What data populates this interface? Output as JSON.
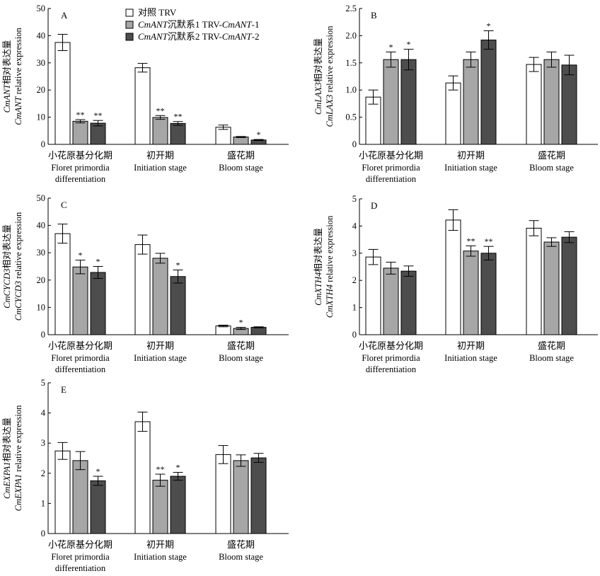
{
  "legend": {
    "items": [
      {
        "parts": [
          {
            "t": "对照 TRV",
            "i": false
          }
        ]
      },
      {
        "parts": [
          {
            "t": "CmANT",
            "i": true
          },
          {
            "t": "沉默系1 TRV-",
            "i": false
          },
          {
            "t": "CmANT",
            "i": true
          },
          {
            "t": "-1",
            "i": false
          }
        ]
      },
      {
        "parts": [
          {
            "t": "CmANT",
            "i": true
          },
          {
            "t": "沉默系2 TRV-",
            "i": false
          },
          {
            "t": "CmANT",
            "i": true
          },
          {
            "t": "-2",
            "i": false
          }
        ]
      }
    ],
    "colors": [
      "#ffffff",
      "#a6a6a6",
      "#4d4d4d"
    ]
  },
  "chart_data": [
    {
      "type": "bar",
      "panel": "A",
      "ylabel_cn": {
        "gene": "CmANT",
        "rest": "相对表达量"
      },
      "ylabel_en": {
        "gene": "CmANT",
        "rest": " relative expression"
      },
      "ylim": [
        0,
        50
      ],
      "yticks": [
        "0",
        "10",
        "20",
        "30",
        "40",
        "50"
      ],
      "categories": [
        {
          "cn": "小花原基分化期",
          "en": [
            "Floret primordia",
            "differentiation"
          ]
        },
        {
          "cn": "初开期",
          "en": [
            "Initiation stage"
          ]
        },
        {
          "cn": "盛花期",
          "en": [
            "Bloom stage"
          ]
        }
      ],
      "series": [
        {
          "values": [
            37.5,
            28.2,
            6.3
          ],
          "errors": [
            3.0,
            1.6,
            0.8
          ],
          "sig": [
            "",
            "",
            ""
          ]
        },
        {
          "values": [
            8.5,
            9.9,
            2.7
          ],
          "errors": [
            0.6,
            0.7,
            0.2
          ],
          "sig": [
            "**",
            "**",
            ""
          ]
        },
        {
          "values": [
            7.8,
            7.7,
            1.6
          ],
          "errors": [
            1.0,
            0.7,
            0.2
          ],
          "sig": [
            "**",
            "**",
            "*"
          ]
        }
      ]
    },
    {
      "type": "bar",
      "panel": "B",
      "ylabel_cn": {
        "gene": "CmLAX3",
        "rest": "相对表达量"
      },
      "ylabel_en": {
        "gene": "CmLAX3",
        "rest": " relative expression"
      },
      "ylim": [
        0,
        2.5
      ],
      "yticks": [
        "0",
        "0.5",
        "1.0",
        "1.5",
        "2.0",
        "2.5"
      ],
      "categories": [
        {
          "cn": "小花原基分化期",
          "en": [
            "Floret primordia",
            "differentiation"
          ]
        },
        {
          "cn": "初开期",
          "en": [
            "Initiation stage"
          ]
        },
        {
          "cn": "盛花期",
          "en": [
            "Bloom stage"
          ]
        }
      ],
      "series": [
        {
          "values": [
            0.87,
            1.13,
            1.47
          ],
          "errors": [
            0.13,
            0.13,
            0.13
          ],
          "sig": [
            "",
            "",
            ""
          ]
        },
        {
          "values": [
            1.56,
            1.56,
            1.56
          ],
          "errors": [
            0.14,
            0.14,
            0.14
          ],
          "sig": [
            "*",
            "",
            ""
          ]
        },
        {
          "values": [
            1.56,
            1.92,
            1.46
          ],
          "errors": [
            0.19,
            0.17,
            0.18
          ],
          "sig": [
            "*",
            "*",
            ""
          ]
        }
      ]
    },
    {
      "type": "bar",
      "panel": "C",
      "ylabel_cn": {
        "gene": "CmCYCD3",
        "rest": "相对表达量"
      },
      "ylabel_en": {
        "gene": "CmCYCD3",
        "rest": " relative expression"
      },
      "ylim": [
        0,
        50
      ],
      "yticks": [
        "0",
        "10",
        "20",
        "30",
        "40",
        "50"
      ],
      "categories": [
        {
          "cn": "小花原基分化期",
          "en": [
            "Floret primordia",
            "differentiation"
          ]
        },
        {
          "cn": "初开期",
          "en": [
            "Initiation stage"
          ]
        },
        {
          "cn": "盛花期",
          "en": [
            "Bloom stage"
          ]
        }
      ],
      "series": [
        {
          "values": [
            37.0,
            33.0,
            3.2
          ],
          "errors": [
            3.5,
            3.5,
            0.3
          ],
          "sig": [
            "",
            "",
            ""
          ]
        },
        {
          "values": [
            24.8,
            28.0,
            2.3
          ],
          "errors": [
            2.5,
            1.8,
            0.4
          ],
          "sig": [
            "*",
            "",
            "*"
          ]
        },
        {
          "values": [
            22.8,
            21.3,
            2.7
          ],
          "errors": [
            2.2,
            2.4,
            0.2
          ],
          "sig": [
            "*",
            "*",
            ""
          ]
        }
      ]
    },
    {
      "type": "bar",
      "panel": "D",
      "ylabel_cn": {
        "gene": "CmXTH4",
        "rest": "相对表达量"
      },
      "ylabel_en": {
        "gene": "CmXTH4",
        "rest": " relative expression"
      },
      "ylim": [
        0,
        5
      ],
      "yticks": [
        "0",
        "1",
        "2",
        "3",
        "4",
        "5"
      ],
      "categories": [
        {
          "cn": "小花原基分化期",
          "en": [
            "Floret primordia",
            "differentiation"
          ]
        },
        {
          "cn": "初开期",
          "en": [
            "Initiation stage"
          ]
        },
        {
          "cn": "盛花期",
          "en": [
            "Bloom stage"
          ]
        }
      ],
      "series": [
        {
          "values": [
            2.86,
            4.22,
            3.92
          ],
          "errors": [
            0.28,
            0.38,
            0.28
          ],
          "sig": [
            "",
            "",
            ""
          ]
        },
        {
          "values": [
            2.45,
            3.08,
            3.41
          ],
          "errors": [
            0.22,
            0.19,
            0.16
          ],
          "sig": [
            "",
            "**",
            ""
          ]
        },
        {
          "values": [
            2.34,
            3.0,
            3.59
          ],
          "errors": [
            0.19,
            0.25,
            0.2
          ],
          "sig": [
            "",
            "**",
            ""
          ]
        }
      ]
    },
    {
      "type": "bar",
      "panel": "E",
      "ylabel_cn": {
        "gene": "CmEXPA1",
        "rest": "相对表达量"
      },
      "ylabel_en": {
        "gene": "CmEXPA1",
        "rest": " relative expression"
      },
      "ylim": [
        0,
        5
      ],
      "yticks": [
        "0",
        "1",
        "2",
        "3",
        "4",
        "5"
      ],
      "categories": [
        {
          "cn": "小花原基分化期",
          "en": [
            "Floret primordia",
            "differentiation"
          ]
        },
        {
          "cn": "初开期",
          "en": [
            "Initiation stage"
          ]
        },
        {
          "cn": "盛花期",
          "en": [
            "Bloom stage"
          ]
        }
      ],
      "series": [
        {
          "values": [
            2.74,
            3.71,
            2.62
          ],
          "errors": [
            0.28,
            0.32,
            0.3
          ],
          "sig": [
            "",
            "",
            ""
          ]
        },
        {
          "values": [
            2.42,
            1.77,
            2.42
          ],
          "errors": [
            0.3,
            0.2,
            0.19
          ],
          "sig": [
            "",
            "**",
            ""
          ]
        },
        {
          "values": [
            1.75,
            1.9,
            2.51
          ],
          "errors": [
            0.15,
            0.13,
            0.15
          ],
          "sig": [
            "*",
            "*",
            ""
          ]
        }
      ]
    }
  ]
}
